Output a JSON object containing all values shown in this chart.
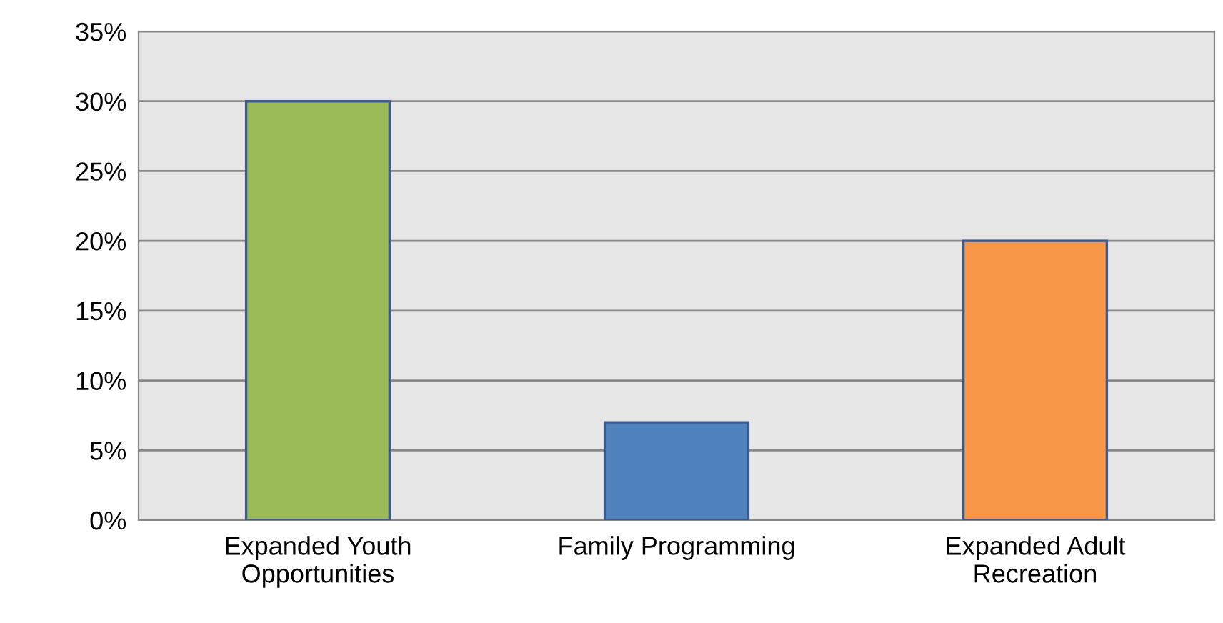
{
  "chart_data": {
    "type": "bar",
    "categories": [
      "Expanded Youth Opportunities",
      "Family Programming",
      "Expanded Adult Recreation"
    ],
    "values": [
      30,
      7,
      20
    ],
    "colors": [
      "#9bbb59",
      "#4f81bd",
      "#f79646"
    ],
    "ylim": [
      0,
      35
    ],
    "yticks": [
      {
        "value": 0,
        "label": "0%"
      },
      {
        "value": 5,
        "label": "5%"
      },
      {
        "value": 10,
        "label": "10%"
      },
      {
        "value": 15,
        "label": "15%"
      },
      {
        "value": 20,
        "label": "20%"
      },
      {
        "value": 25,
        "label": "25%"
      },
      {
        "value": 30,
        "label": "30%"
      },
      {
        "value": 35,
        "label": "35%"
      }
    ],
    "grid": "y",
    "legend": false
  }
}
